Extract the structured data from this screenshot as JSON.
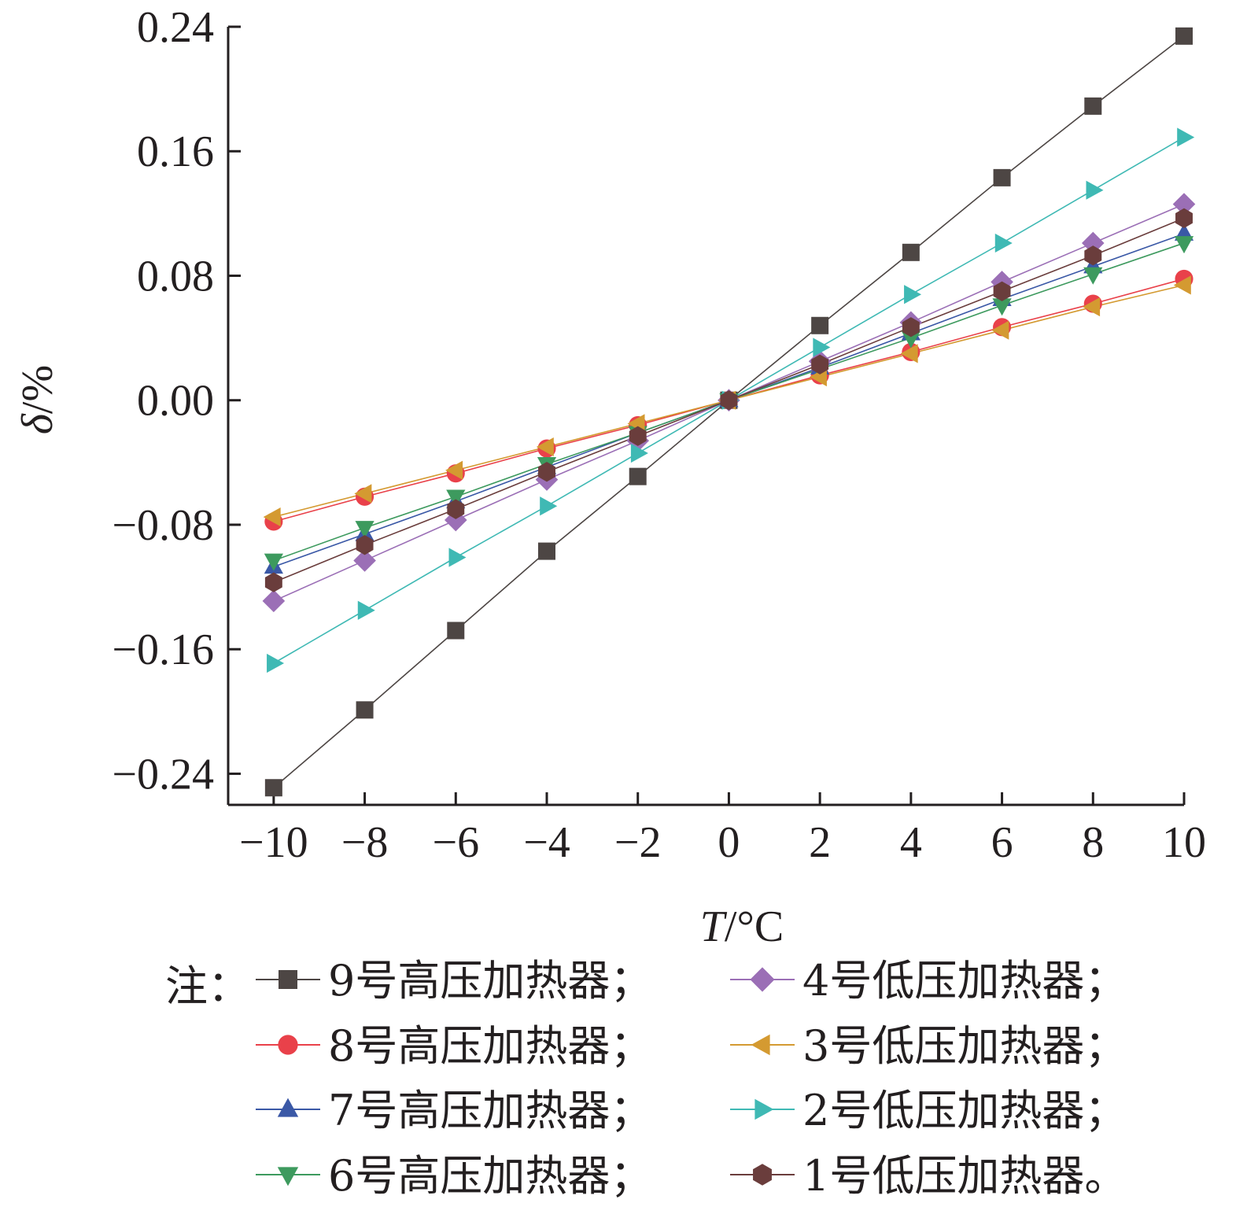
{
  "chart_data": {
    "type": "line",
    "xlabel_var": "T",
    "xlabel_unit": "/°C",
    "ylabel_var": "δ",
    "ylabel_unit": "/%",
    "x": [
      -10,
      -8,
      -6,
      -4,
      -2,
      0,
      2,
      4,
      6,
      8,
      10
    ],
    "x_tick_labels": [
      "−10",
      "−8",
      "−6",
      "−4",
      "−2",
      "0",
      "2",
      "4",
      "6",
      "8",
      "10"
    ],
    "y_ticks": [
      -0.24,
      -0.16,
      -0.08,
      0.0,
      0.08,
      0.16,
      0.24
    ],
    "y_tick_labels": [
      "−0.24",
      "−0.16",
      "−0.08",
      "0.00",
      "0.08",
      "0.16",
      "0.24"
    ],
    "xlim": [
      -11,
      10
    ],
    "ylim": [
      -0.26,
      0.24
    ],
    "grid": false,
    "legend_prefix": "注：",
    "legend_position": "bottom",
    "series": [
      {
        "name": "9号高压加热器；",
        "marker": "square",
        "color": "#4d4644",
        "values": [
          -0.249,
          -0.199,
          -0.148,
          -0.097,
          -0.049,
          0.0,
          0.048,
          0.095,
          0.143,
          0.189,
          0.234
        ]
      },
      {
        "name": "8号高压加热器；",
        "marker": "circle",
        "color": "#e9414a",
        "values": [
          -0.078,
          -0.062,
          -0.047,
          -0.031,
          -0.016,
          0.0,
          0.016,
          0.031,
          0.047,
          0.062,
          0.078
        ]
      },
      {
        "name": "7号高压加热器；",
        "marker": "triangle-up",
        "color": "#3a58a6",
        "values": [
          -0.107,
          -0.086,
          -0.065,
          -0.043,
          -0.021,
          0.0,
          0.021,
          0.043,
          0.065,
          0.086,
          0.107
        ]
      },
      {
        "name": "6号高压加热器；",
        "marker": "triangle-down",
        "color": "#3d9a5e",
        "values": [
          -0.103,
          -0.082,
          -0.062,
          -0.041,
          -0.021,
          0.0,
          0.02,
          0.04,
          0.061,
          0.081,
          0.101
        ]
      },
      {
        "name": "4号低压加热器；",
        "marker": "diamond",
        "color": "#9b6fb6",
        "values": [
          -0.129,
          -0.103,
          -0.077,
          -0.051,
          -0.026,
          0.0,
          0.025,
          0.05,
          0.076,
          0.101,
          0.126
        ]
      },
      {
        "name": "3号低压加热器；",
        "marker": "triangle-left",
        "color": "#d49a31",
        "values": [
          -0.075,
          -0.06,
          -0.045,
          -0.03,
          -0.015,
          0.0,
          0.015,
          0.03,
          0.045,
          0.06,
          0.074
        ]
      },
      {
        "name": "2号低压加热器；",
        "marker": "triangle-right",
        "color": "#3fb9b4",
        "values": [
          -0.169,
          -0.135,
          -0.101,
          -0.068,
          -0.034,
          0.0,
          0.034,
          0.068,
          0.101,
          0.135,
          0.169
        ]
      },
      {
        "name": "1号低压加热器。",
        "marker": "hexagon",
        "color": "#6a3d3c",
        "values": [
          -0.117,
          -0.093,
          -0.07,
          -0.046,
          -0.023,
          0.0,
          0.023,
          0.047,
          0.07,
          0.093,
          0.117
        ]
      }
    ]
  }
}
